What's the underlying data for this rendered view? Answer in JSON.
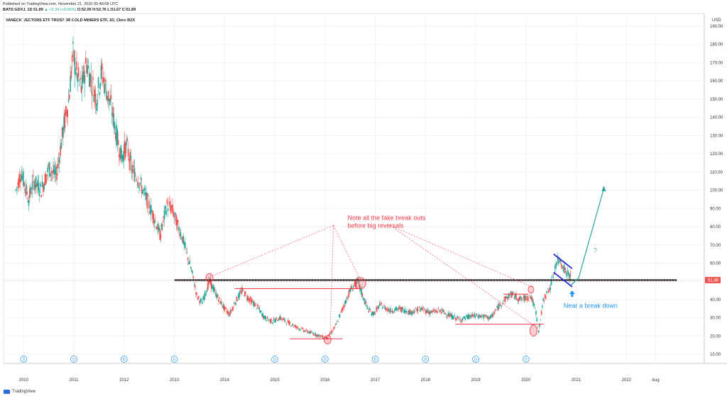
{
  "header": {
    "published": "Published on TradingView.com, November 21, 2020 05:48:08 UTC",
    "symbol": "BATS:GDXJ, 1D",
    "price_line": "51.89",
    "change": "▲ +0.34 (+0.66%)",
    "ohlc": "O:52.09 H:52.76 L:51.67 C:51.89"
  },
  "chart_data": {
    "type": "candlestick",
    "title": "VANECK VECTORS ETF TRUST JR GOLD MINERS ETF, 1D, Cboe BZX",
    "currency": "USD",
    "last_price": "51.89",
    "y_ticks": [
      "10.00",
      "20.00",
      "30.00",
      "40.00",
      "50.00",
      "60.00",
      "70.00",
      "80.00",
      "90.00",
      "100.00",
      "110.00",
      "120.00",
      "130.00",
      "140.00",
      "150.00",
      "160.00",
      "170.00",
      "180.00",
      "190.00"
    ],
    "x_ticks": [
      "2010",
      "2011",
      "2012",
      "2013",
      "2014",
      "2015",
      "2016",
      "2017",
      "2018",
      "2019",
      "2020",
      "2021",
      "2022",
      "Aug"
    ],
    "ylim": [
      5,
      197
    ],
    "xlim": [
      2009.6,
      2023.55
    ],
    "series": [
      {
        "values": [
          [
            2009.85,
            100
          ],
          [
            2009.95,
            110
          ],
          [
            2010.1,
            95
          ],
          [
            2010.2,
            105
          ],
          [
            2010.35,
            100
          ],
          [
            2010.5,
            112
          ],
          [
            2010.65,
            108
          ],
          [
            2010.8,
            135
          ],
          [
            2010.9,
            150
          ],
          [
            2010.98,
            175
          ],
          [
            2011.05,
            165
          ],
          [
            2011.15,
            155
          ],
          [
            2011.25,
            170
          ],
          [
            2011.35,
            160
          ],
          [
            2011.45,
            150
          ],
          [
            2011.55,
            165
          ],
          [
            2011.65,
            155
          ],
          [
            2011.75,
            145
          ],
          [
            2011.85,
            130
          ],
          [
            2011.95,
            118
          ],
          [
            2012.05,
            125
          ],
          [
            2012.15,
            112
          ],
          [
            2012.3,
            105
          ],
          [
            2012.45,
            95
          ],
          [
            2012.6,
            85
          ],
          [
            2012.72,
            75
          ],
          [
            2012.85,
            92
          ],
          [
            2012.95,
            90
          ],
          [
            2013.05,
            82
          ],
          [
            2013.15,
            75
          ],
          [
            2013.25,
            65
          ],
          [
            2013.35,
            55
          ],
          [
            2013.45,
            42
          ],
          [
            2013.55,
            38
          ],
          [
            2013.7,
            50
          ],
          [
            2013.85,
            42
          ],
          [
            2014.0,
            35
          ],
          [
            2014.1,
            32
          ],
          [
            2014.2,
            38
          ],
          [
            2014.35,
            45
          ],
          [
            2014.5,
            40
          ],
          [
            2014.65,
            36
          ],
          [
            2014.8,
            30
          ],
          [
            2014.95,
            28
          ],
          [
            2015.1,
            30
          ],
          [
            2015.3,
            27
          ],
          [
            2015.5,
            24
          ],
          [
            2015.7,
            22
          ],
          [
            2015.9,
            20
          ],
          [
            2016.05,
            19
          ],
          [
            2016.2,
            25
          ],
          [
            2016.35,
            35
          ],
          [
            2016.5,
            45
          ],
          [
            2016.65,
            50
          ],
          [
            2016.75,
            42
          ],
          [
            2016.85,
            35
          ],
          [
            2016.95,
            32
          ],
          [
            2017.1,
            37
          ],
          [
            2017.3,
            34
          ],
          [
            2017.5,
            35
          ],
          [
            2017.7,
            33
          ],
          [
            2017.9,
            35
          ],
          [
            2018.1,
            33
          ],
          [
            2018.3,
            34
          ],
          [
            2018.5,
            31
          ],
          [
            2018.7,
            29
          ],
          [
            2018.9,
            31
          ],
          [
            2019.1,
            31
          ],
          [
            2019.3,
            30
          ],
          [
            2019.5,
            38
          ],
          [
            2019.7,
            43
          ],
          [
            2019.9,
            40
          ],
          [
            2020.1,
            42
          ],
          [
            2020.2,
            33
          ],
          [
            2020.25,
            22
          ],
          [
            2020.35,
            40
          ],
          [
            2020.5,
            48
          ],
          [
            2020.6,
            60
          ],
          [
            2020.68,
            62
          ],
          [
            2020.78,
            56
          ],
          [
            2020.9,
            51.89
          ]
        ]
      }
    ],
    "annotations": {
      "note_line1": "Note all the fake break outs",
      "note_line2": "before big reversals",
      "breakdown": "Near a break down",
      "question": "?"
    },
    "event_marker": "D",
    "event_count": 10
  },
  "footer": {
    "logo": "TradingView"
  },
  "colors": {
    "up": "#26a69a",
    "down": "#ef5350",
    "note": "#f23645",
    "blue": "#2196f3",
    "arrow": "#26a69a",
    "flag": "#2b2bd6"
  }
}
